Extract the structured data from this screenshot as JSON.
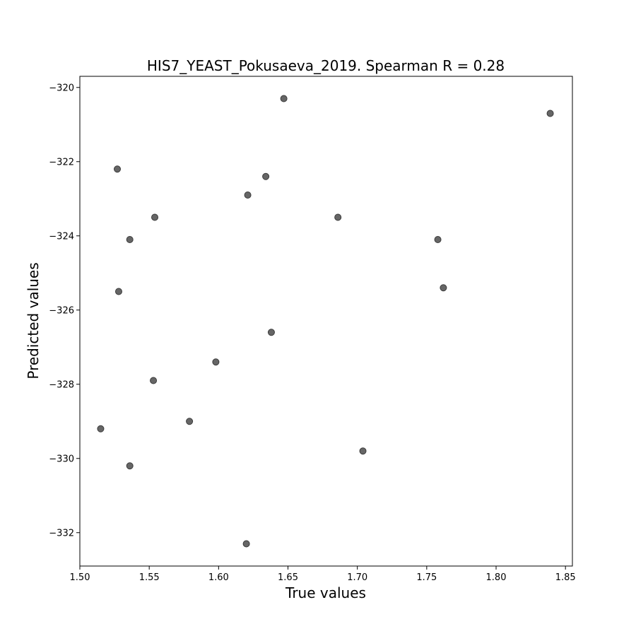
{
  "chart_data": {
    "type": "scatter",
    "title": "HIS7_YEAST_Pokusaeva_2019. Spearman R = 0.28",
    "xlabel": "True values",
    "ylabel": "Predicted values",
    "xlim": [
      1.5,
      1.855
    ],
    "ylim": [
      -332.9,
      -319.7
    ],
    "xticks": [
      1.5,
      1.55,
      1.6,
      1.65,
      1.7,
      1.75,
      1.8,
      1.85
    ],
    "xtick_labels": [
      "1.50",
      "1.55",
      "1.60",
      "1.65",
      "1.70",
      "1.75",
      "1.80",
      "1.85"
    ],
    "yticks": [
      -320,
      -322,
      -324,
      -326,
      -328,
      -330,
      -332
    ],
    "ytick_labels": [
      "−320",
      "−322",
      "−324",
      "−326",
      "−328",
      "−330",
      "−332"
    ],
    "grid": false,
    "marker_color": "#666666",
    "marker_edge_color": "#3a3a3a",
    "points": [
      {
        "x": 1.647,
        "y": -320.3
      },
      {
        "x": 1.839,
        "y": -320.7
      },
      {
        "x": 1.527,
        "y": -322.2
      },
      {
        "x": 1.634,
        "y": -322.4
      },
      {
        "x": 1.621,
        "y": -322.9
      },
      {
        "x": 1.554,
        "y": -323.5
      },
      {
        "x": 1.686,
        "y": -323.5
      },
      {
        "x": 1.536,
        "y": -324.1
      },
      {
        "x": 1.758,
        "y": -324.1
      },
      {
        "x": 1.528,
        "y": -325.5
      },
      {
        "x": 1.762,
        "y": -325.4
      },
      {
        "x": 1.638,
        "y": -326.6
      },
      {
        "x": 1.598,
        "y": -327.4
      },
      {
        "x": 1.553,
        "y": -327.9
      },
      {
        "x": 1.515,
        "y": -329.2
      },
      {
        "x": 1.579,
        "y": -329.0
      },
      {
        "x": 1.704,
        "y": -329.8
      },
      {
        "x": 1.536,
        "y": -330.2
      },
      {
        "x": 1.62,
        "y": -332.3
      }
    ]
  }
}
